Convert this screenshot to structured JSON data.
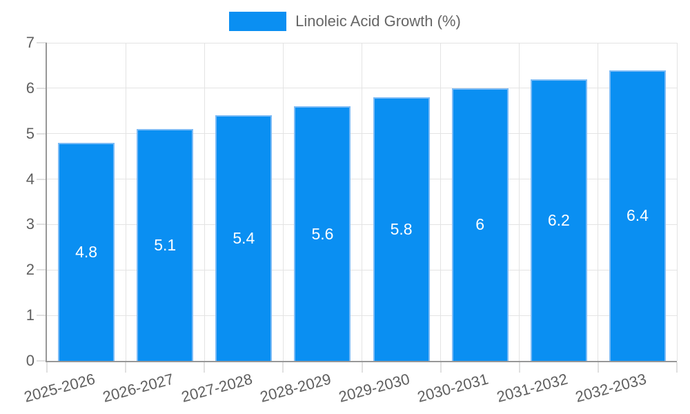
{
  "chart_data": {
    "type": "bar",
    "title": "Linoleic Acid Growth (%)",
    "legend_position": "top",
    "categories": [
      "2025-2026",
      "2026-2027",
      "2027-2028",
      "2028-2029",
      "2029-2030",
      "2030-2031",
      "2031-2032",
      "2032-2033"
    ],
    "values": [
      4.8,
      5.1,
      5.4,
      5.6,
      5.8,
      6,
      6.2,
      6.4
    ],
    "value_labels": [
      "4.8",
      "5.1",
      "5.4",
      "5.6",
      "5.8",
      "6",
      "6.2",
      "6.4"
    ],
    "yticks": [
      "0",
      "1",
      "2",
      "3",
      "4",
      "5",
      "6",
      "7"
    ],
    "ylim": [
      0,
      7
    ],
    "grid": true,
    "x_label_rotation_deg": -15,
    "colors": {
      "bar": "#0a8ff2",
      "bar_border": "#7cbbf6",
      "grid": "#e3e3e3",
      "tick": "#e0e0e0",
      "axis": "#979797",
      "text": "#5f5f5f",
      "legend_text": "#666666",
      "value_label": "#ffffff"
    }
  }
}
